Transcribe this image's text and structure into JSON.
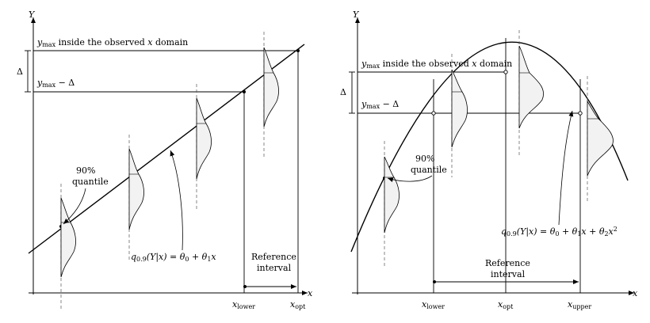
{
  "left_panel": {
    "y_axis_label": "Y",
    "x_axis_label": "x",
    "delta_label": "Δ",
    "ymax_text": "inside the observed",
    "ymax_var": "x",
    "ymax_suffix": "domain",
    "ymax_minus_delta": "− Δ",
    "quantile_label_line1": "90%",
    "quantile_label_line2": "quantile",
    "regression_label": "q0.9(Y|x) = θ0 + θ1x",
    "reference_line1": "Reference",
    "reference_line2": "interval",
    "x_lower_label": "xlower",
    "x_opt_label": "xopt"
  },
  "right_panel": {
    "y_axis_label": "Y",
    "x_axis_label": "x",
    "delta_label": "Δ",
    "ymax_text": "inside the observed",
    "ymax_var": "x",
    "ymax_suffix": "domain",
    "ymax_minus_delta": "− Δ",
    "quantile_label_line1": "90%",
    "quantile_label_line2": "quantile",
    "regression_label": "q0.9(Y|x) = θ0 + θ1x + θ2x²",
    "reference_line1": "Reference",
    "reference_line2": "interval",
    "x_lower_label": "xlower",
    "x_opt_label": "xopt",
    "x_upper_label": "xupper"
  }
}
